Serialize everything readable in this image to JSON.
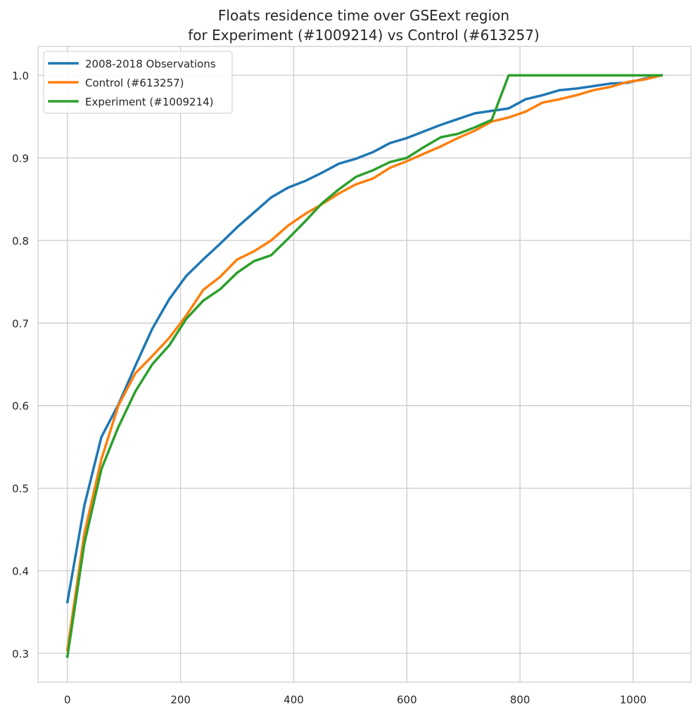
{
  "chart_data": {
    "type": "line",
    "title": "Floats residence time over GSEext region",
    "subtitle": "for Experiment (#1009214) vs Control (#613257)",
    "xlabel": "",
    "ylabel": "",
    "xlim": [
      -52,
      1102
    ],
    "ylim": [
      0.265,
      1.035
    ],
    "xticks": [
      "0",
      "200",
      "400",
      "600",
      "800",
      "1000"
    ],
    "xtick_values": [
      0,
      200,
      400,
      600,
      800,
      1000
    ],
    "yticks": [
      "0.3",
      "0.4",
      "0.5",
      "0.6",
      "0.7",
      "0.8",
      "0.9",
      "1.0"
    ],
    "ytick_values": [
      0.3,
      0.4,
      0.5,
      0.6,
      0.7,
      0.8,
      0.9,
      1.0
    ],
    "grid": true,
    "legend_position": "top-left",
    "colors": {
      "observations": "#1f77b4",
      "control": "#ff7f0e",
      "experiment": "#2ca02c",
      "grid": "#cccccc",
      "axes": "#cccccc",
      "text": "#262626"
    },
    "series": [
      {
        "name": "2008-2018 Observations",
        "color": "#1f77b4",
        "x": [
          0,
          30,
          60,
          90,
          120,
          150,
          180,
          210,
          240,
          270,
          300,
          330,
          360,
          390,
          420,
          450,
          480,
          510,
          540,
          570,
          600,
          630,
          660,
          690,
          720,
          750,
          780,
          810,
          840,
          870,
          900,
          930,
          960,
          990,
          1020,
          1050
        ],
        "y": [
          0.362,
          0.479,
          0.562,
          0.601,
          0.648,
          0.693,
          0.729,
          0.757,
          0.777,
          0.796,
          0.816,
          0.834,
          0.852,
          0.864,
          0.872,
          0.882,
          0.893,
          0.899,
          0.907,
          0.918,
          0.924,
          0.932,
          0.94,
          0.947,
          0.954,
          0.957,
          0.96,
          0.971,
          0.976,
          0.982,
          0.984,
          0.987,
          0.99,
          0.991,
          0.996,
          1.0
        ]
      },
      {
        "name": "Control (#613257)",
        "color": "#ff7f0e",
        "x": [
          0,
          30,
          60,
          90,
          120,
          150,
          180,
          210,
          240,
          270,
          300,
          330,
          360,
          390,
          420,
          450,
          480,
          510,
          540,
          570,
          600,
          630,
          660,
          690,
          720,
          750,
          780,
          810,
          840,
          870,
          900,
          930,
          960,
          990,
          1020,
          1050
        ],
        "y": [
          0.304,
          0.445,
          0.535,
          0.6,
          0.639,
          0.66,
          0.682,
          0.709,
          0.74,
          0.756,
          0.777,
          0.787,
          0.8,
          0.818,
          0.832,
          0.844,
          0.857,
          0.868,
          0.875,
          0.888,
          0.896,
          0.905,
          0.914,
          0.924,
          0.933,
          0.944,
          0.949,
          0.956,
          0.967,
          0.971,
          0.976,
          0.982,
          0.986,
          0.992,
          0.995,
          1.0
        ]
      },
      {
        "name": "Experiment (#1009214)",
        "color": "#2ca02c",
        "x": [
          0,
          30,
          60,
          90,
          120,
          150,
          180,
          210,
          240,
          270,
          300,
          330,
          360,
          390,
          420,
          450,
          480,
          510,
          540,
          570,
          600,
          630,
          660,
          690,
          720,
          750,
          780,
          810,
          840,
          870,
          900,
          930,
          960,
          990,
          1020,
          1050
        ],
        "y": [
          0.296,
          0.433,
          0.523,
          0.574,
          0.617,
          0.65,
          0.673,
          0.705,
          0.727,
          0.741,
          0.761,
          0.775,
          0.782,
          0.802,
          0.823,
          0.845,
          0.862,
          0.877,
          0.885,
          0.895,
          0.9,
          0.913,
          0.925,
          0.929,
          0.937,
          0.946,
          1.0,
          1.0,
          1.0,
          1.0,
          1.0,
          1.0,
          1.0,
          1.0,
          1.0,
          1.0
        ]
      }
    ]
  }
}
